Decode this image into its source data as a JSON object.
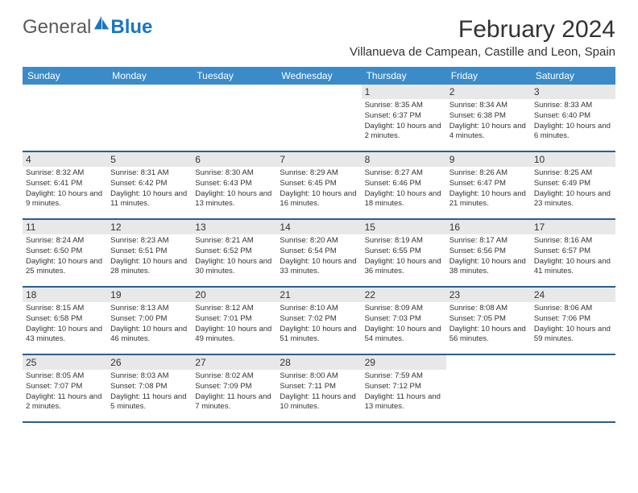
{
  "logo": {
    "general": "General",
    "blue": "Blue"
  },
  "title": "February 2024",
  "location": "Villanueva de Campean, Castille and Leon, Spain",
  "header_bg": "#3b8bc9",
  "border_color": "#2b5f8c",
  "band_bg": "#e8e8e8",
  "weekdays": [
    "Sunday",
    "Monday",
    "Tuesday",
    "Wednesday",
    "Thursday",
    "Friday",
    "Saturday"
  ],
  "weeks": [
    [
      null,
      null,
      null,
      null,
      {
        "n": "1",
        "sr": "8:35 AM",
        "ss": "6:37 PM",
        "dl": "10 hours and 2 minutes."
      },
      {
        "n": "2",
        "sr": "8:34 AM",
        "ss": "6:38 PM",
        "dl": "10 hours and 4 minutes."
      },
      {
        "n": "3",
        "sr": "8:33 AM",
        "ss": "6:40 PM",
        "dl": "10 hours and 6 minutes."
      }
    ],
    [
      {
        "n": "4",
        "sr": "8:32 AM",
        "ss": "6:41 PM",
        "dl": "10 hours and 9 minutes."
      },
      {
        "n": "5",
        "sr": "8:31 AM",
        "ss": "6:42 PM",
        "dl": "10 hours and 11 minutes."
      },
      {
        "n": "6",
        "sr": "8:30 AM",
        "ss": "6:43 PM",
        "dl": "10 hours and 13 minutes."
      },
      {
        "n": "7",
        "sr": "8:29 AM",
        "ss": "6:45 PM",
        "dl": "10 hours and 16 minutes."
      },
      {
        "n": "8",
        "sr": "8:27 AM",
        "ss": "6:46 PM",
        "dl": "10 hours and 18 minutes."
      },
      {
        "n": "9",
        "sr": "8:26 AM",
        "ss": "6:47 PM",
        "dl": "10 hours and 21 minutes."
      },
      {
        "n": "10",
        "sr": "8:25 AM",
        "ss": "6:49 PM",
        "dl": "10 hours and 23 minutes."
      }
    ],
    [
      {
        "n": "11",
        "sr": "8:24 AM",
        "ss": "6:50 PM",
        "dl": "10 hours and 25 minutes."
      },
      {
        "n": "12",
        "sr": "8:23 AM",
        "ss": "6:51 PM",
        "dl": "10 hours and 28 minutes."
      },
      {
        "n": "13",
        "sr": "8:21 AM",
        "ss": "6:52 PM",
        "dl": "10 hours and 30 minutes."
      },
      {
        "n": "14",
        "sr": "8:20 AM",
        "ss": "6:54 PM",
        "dl": "10 hours and 33 minutes."
      },
      {
        "n": "15",
        "sr": "8:19 AM",
        "ss": "6:55 PM",
        "dl": "10 hours and 36 minutes."
      },
      {
        "n": "16",
        "sr": "8:17 AM",
        "ss": "6:56 PM",
        "dl": "10 hours and 38 minutes."
      },
      {
        "n": "17",
        "sr": "8:16 AM",
        "ss": "6:57 PM",
        "dl": "10 hours and 41 minutes."
      }
    ],
    [
      {
        "n": "18",
        "sr": "8:15 AM",
        "ss": "6:58 PM",
        "dl": "10 hours and 43 minutes."
      },
      {
        "n": "19",
        "sr": "8:13 AM",
        "ss": "7:00 PM",
        "dl": "10 hours and 46 minutes."
      },
      {
        "n": "20",
        "sr": "8:12 AM",
        "ss": "7:01 PM",
        "dl": "10 hours and 49 minutes."
      },
      {
        "n": "21",
        "sr": "8:10 AM",
        "ss": "7:02 PM",
        "dl": "10 hours and 51 minutes."
      },
      {
        "n": "22",
        "sr": "8:09 AM",
        "ss": "7:03 PM",
        "dl": "10 hours and 54 minutes."
      },
      {
        "n": "23",
        "sr": "8:08 AM",
        "ss": "7:05 PM",
        "dl": "10 hours and 56 minutes."
      },
      {
        "n": "24",
        "sr": "8:06 AM",
        "ss": "7:06 PM",
        "dl": "10 hours and 59 minutes."
      }
    ],
    [
      {
        "n": "25",
        "sr": "8:05 AM",
        "ss": "7:07 PM",
        "dl": "11 hours and 2 minutes."
      },
      {
        "n": "26",
        "sr": "8:03 AM",
        "ss": "7:08 PM",
        "dl": "11 hours and 5 minutes."
      },
      {
        "n": "27",
        "sr": "8:02 AM",
        "ss": "7:09 PM",
        "dl": "11 hours and 7 minutes."
      },
      {
        "n": "28",
        "sr": "8:00 AM",
        "ss": "7:11 PM",
        "dl": "11 hours and 10 minutes."
      },
      {
        "n": "29",
        "sr": "7:59 AM",
        "ss": "7:12 PM",
        "dl": "11 hours and 13 minutes."
      },
      null,
      null
    ]
  ],
  "labels": {
    "sunrise": "Sunrise:",
    "sunset": "Sunset:",
    "daylight": "Daylight:"
  }
}
